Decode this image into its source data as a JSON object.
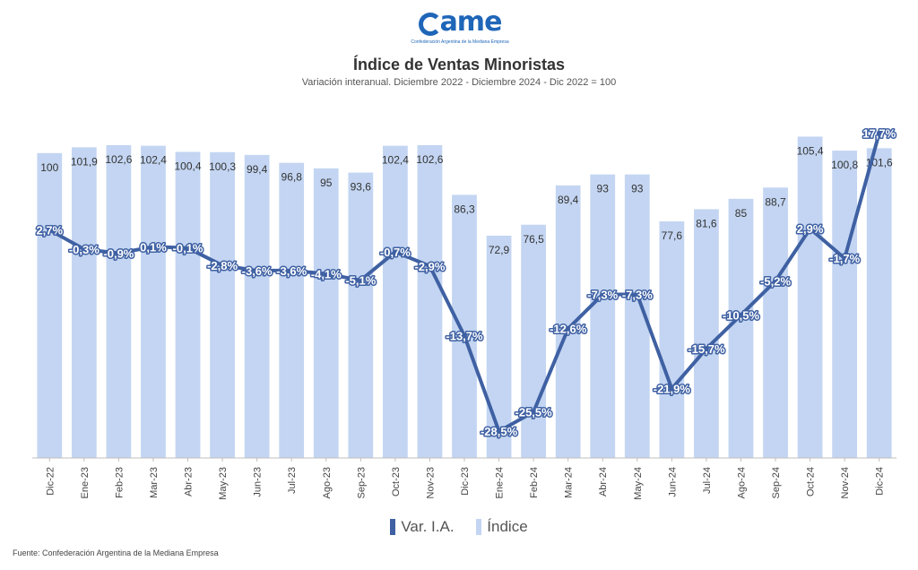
{
  "header": {
    "logo_text": "ame",
    "logo_sub": "Confederación Argentina de la Mediana Empresa",
    "title": "Índice de Ventas Minoristas",
    "subtitle": "Variación interanual. Diciembre 2022 - Diciembre 2024 - Dic 2022 = 100"
  },
  "legend": {
    "line": "Var. I.A.",
    "bar": "Índice"
  },
  "source": "Fuente: Confederación Argentina de la Mediana Empresa",
  "colors": {
    "bar": "#c3d5f2",
    "line": "#3f61a3",
    "label_text": "#ffffff"
  },
  "chart_data": {
    "type": "bar",
    "categories": [
      "Dic-22",
      "Ene-23",
      "Feb-23",
      "Mar-23",
      "Abr-23",
      "May-23",
      "Jun-23",
      "Jul-23",
      "Ago-23",
      "Sep-23",
      "Oct-23",
      "Nov-23",
      "Dic-23",
      "Ene-24",
      "Feb-24",
      "Mar-24",
      "Abr-24",
      "May-24",
      "Jun-24",
      "Jul-24",
      "Ago-24",
      "Sep-24",
      "Oct-24",
      "Nov-24",
      "Dic-24"
    ],
    "series": [
      {
        "name": "Índice",
        "type": "bar",
        "values": [
          100,
          101.9,
          102.6,
          102.4,
          100.4,
          100.3,
          99.4,
          96.8,
          95,
          93.6,
          102.4,
          102.6,
          86.3,
          72.9,
          76.5,
          89.4,
          93,
          93,
          77.6,
          81.6,
          85,
          88.7,
          105.4,
          100.8,
          101.6
        ],
        "labels": [
          "100",
          "101,9",
          "102,6",
          "102,4",
          "100,4",
          "100,3",
          "99,4",
          "96,8",
          "95",
          "93,6",
          "102,4",
          "102,6",
          "86,3",
          "72,9",
          "76,5",
          "89,4",
          "93",
          "93",
          "77,6",
          "81,6",
          "85",
          "88,7",
          "105,4",
          "100,8",
          "101,6"
        ]
      },
      {
        "name": "Var. I.A.",
        "type": "line",
        "values": [
          2.7,
          -0.3,
          -0.9,
          0.1,
          -0.1,
          -2.8,
          -3.6,
          -3.6,
          -4.1,
          -5.1,
          -0.7,
          -2.9,
          -13.7,
          -28.5,
          -25.5,
          -12.6,
          -7.3,
          -7.3,
          -21.9,
          -15.7,
          -10.5,
          -5.2,
          2.9,
          -1.7,
          17.7
        ],
        "labels": [
          "2,7%",
          "-0,3%",
          "-0,9%",
          "0,1%",
          "-0,1%",
          "-2,8%",
          "-3,6%",
          "-3,6%",
          "-4,1%",
          "-5,1%",
          "-0,7%",
          "-2,9%",
          "-13,7%",
          "-28,5%",
          "-25,5%",
          "-12,6%",
          "-7,3%",
          "-7,3%",
          "-21,9%",
          "-15,7%",
          "-10,5%",
          "-5,2%",
          "2,9%",
          "-1,7%",
          "17,7%"
        ]
      }
    ],
    "title": "Índice de Ventas Minoristas",
    "xlabel": "",
    "ylabel": "",
    "bar_ylim": [
      0,
      112
    ],
    "line_ylim": [
      -45,
      25
    ]
  }
}
